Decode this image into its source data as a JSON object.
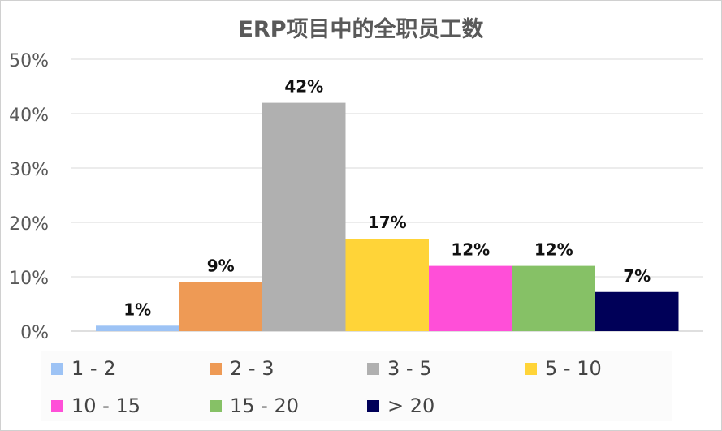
{
  "chart_data": {
    "type": "bar",
    "title": "ERP项目中的全职员工数",
    "xlabel": "",
    "ylabel": "",
    "ylim": [
      0,
      50
    ],
    "y_ticks": [
      "0%",
      "10%",
      "20%",
      "30%",
      "40%",
      "50%"
    ],
    "grid": true,
    "legend_position": "bottom",
    "series": [
      {
        "name": "1 - 2",
        "value": 1,
        "label": "1%",
        "color": "#9dc3f5"
      },
      {
        "name": "2 - 3",
        "value": 9,
        "label": "9%",
        "color": "#ee9a55"
      },
      {
        "name": "3 - 5",
        "value": 42,
        "label": "42%",
        "color": "#b0b0b0"
      },
      {
        "name": "5 - 10",
        "value": 17,
        "label": "17%",
        "color": "#ffd438"
      },
      {
        "name": "10 - 15",
        "value": 12,
        "label": "12%",
        "color": "#ff4fd8"
      },
      {
        "name": "15 - 20",
        "value": 12,
        "label": "12%",
        "color": "#86c166"
      },
      {
        "name": "> 20",
        "value": 7.2,
        "label": "7%",
        "color": "#000058"
      }
    ]
  }
}
